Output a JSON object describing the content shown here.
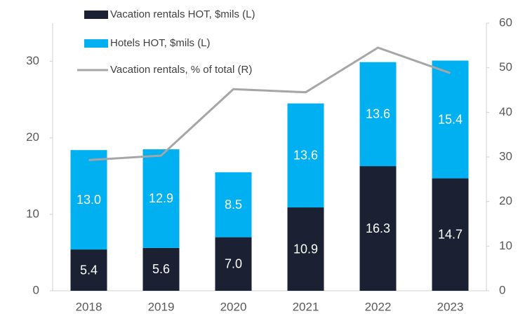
{
  "chart_data": {
    "type": "bar-line",
    "categories": [
      "2018",
      "2019",
      "2020",
      "2021",
      "2022",
      "2023"
    ],
    "series": [
      {
        "name": "Vacation rentals HOT, $mils (L)",
        "color": "#1b2133",
        "type": "bar",
        "values": [
          5.4,
          5.6,
          7.0,
          10.9,
          16.3,
          14.7
        ],
        "value_labels": [
          "5.4",
          "5.6",
          "7.0",
          "10.9",
          "16.3",
          "14.7"
        ]
      },
      {
        "name": "Hotels HOT, $mils (L)",
        "color": "#00b0f0",
        "type": "bar",
        "values": [
          13.0,
          12.9,
          8.5,
          13.6,
          13.6,
          15.4
        ],
        "value_labels": [
          "13.0",
          "12.9",
          "8.5",
          "13.6",
          "13.6",
          "15.4"
        ]
      },
      {
        "name": "Vacation rentals, % of total (R)",
        "color": "#a6a6a6",
        "type": "line",
        "axis": "y2",
        "values": [
          29.3,
          30.3,
          45.2,
          44.5,
          54.5,
          48.8
        ]
      }
    ],
    "ylim": [
      0,
      35
    ],
    "yticks": [
      0,
      10,
      20,
      30
    ],
    "y2lim": [
      0,
      60
    ],
    "y2ticks": [
      0,
      10,
      20,
      30,
      40,
      50,
      60
    ]
  }
}
